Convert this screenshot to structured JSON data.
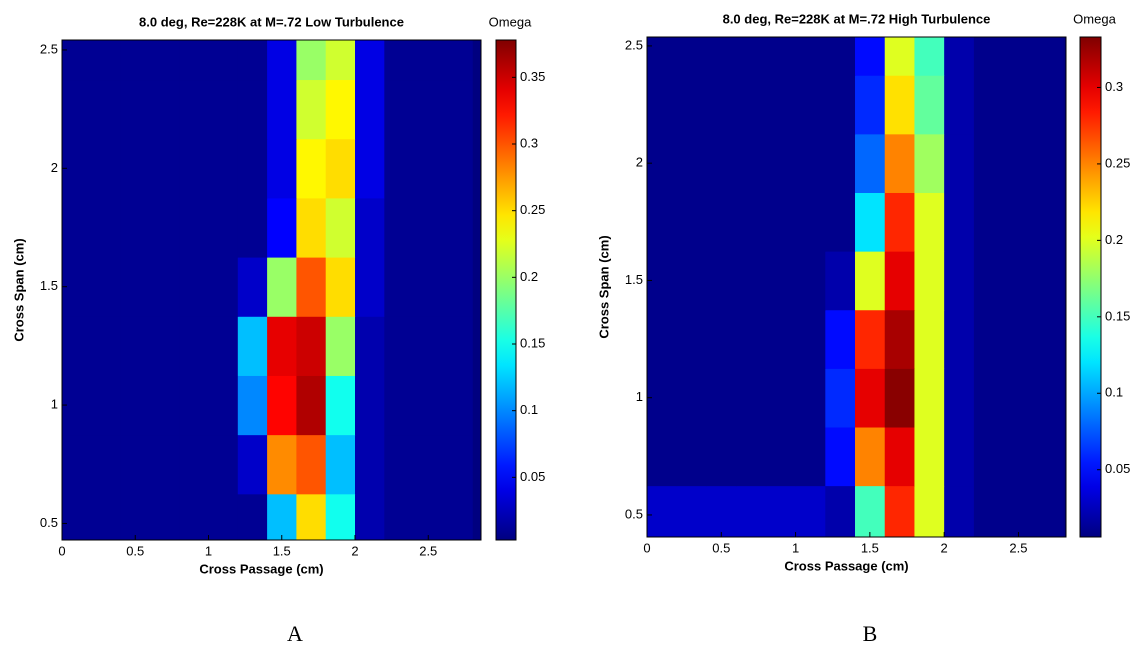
{
  "chart_data": [
    {
      "type": "heatmap",
      "title": "8.0 deg, Re=228K at M=.72 Low Turbulence",
      "colorbar_label": "Omega",
      "x_label": "Cross Passage (cm)",
      "y_label": "Cross Span (cm)",
      "panel_label": "A",
      "colormap": "jet",
      "x": [
        0.1,
        0.3,
        0.5,
        0.7,
        0.9,
        1.1,
        1.3,
        1.5,
        1.7,
        1.9,
        2.1,
        2.3,
        2.5,
        2.7
      ],
      "y": [
        0.5,
        0.75,
        1.0,
        1.25,
        1.5,
        1.75,
        2.0,
        2.25,
        2.5
      ],
      "z": [
        [
          0.01,
          0.01,
          0.01,
          0.01,
          0.01,
          0.01,
          0.01,
          0.12,
          0.25,
          0.15,
          0.02,
          0.01,
          0.01,
          0.01
        ],
        [
          0.01,
          0.01,
          0.01,
          0.01,
          0.01,
          0.01,
          0.03,
          0.28,
          0.3,
          0.12,
          0.02,
          0.01,
          0.01,
          0.01
        ],
        [
          0.01,
          0.01,
          0.01,
          0.01,
          0.01,
          0.01,
          0.1,
          0.33,
          0.36,
          0.15,
          0.02,
          0.01,
          0.01,
          0.01
        ],
        [
          0.01,
          0.01,
          0.01,
          0.01,
          0.01,
          0.01,
          0.12,
          0.34,
          0.35,
          0.2,
          0.02,
          0.01,
          0.01,
          0.01
        ],
        [
          0.01,
          0.01,
          0.01,
          0.01,
          0.01,
          0.01,
          0.03,
          0.2,
          0.3,
          0.25,
          0.03,
          0.01,
          0.01,
          0.01
        ],
        [
          0.01,
          0.01,
          0.01,
          0.01,
          0.01,
          0.01,
          0.01,
          0.05,
          0.25,
          0.22,
          0.03,
          0.01,
          0.01,
          0.01
        ],
        [
          0.01,
          0.01,
          0.01,
          0.01,
          0.01,
          0.01,
          0.01,
          0.04,
          0.24,
          0.25,
          0.04,
          0.01,
          0.01,
          0.01
        ],
        [
          0.01,
          0.01,
          0.01,
          0.01,
          0.01,
          0.01,
          0.01,
          0.04,
          0.22,
          0.24,
          0.04,
          0.01,
          0.01,
          0.01
        ],
        [
          0.01,
          0.01,
          0.01,
          0.01,
          0.01,
          0.01,
          0.01,
          0.04,
          0.2,
          0.22,
          0.04,
          0.01,
          0.01,
          0.01
        ]
      ],
      "xlim": [
        0,
        2.86
      ],
      "ylim": [
        0.43,
        2.542
      ],
      "xticks": [
        0,
        0.5,
        1,
        1.5,
        2,
        2.5
      ],
      "yticks": [
        0.5,
        1,
        1.5,
        2,
        2.5
      ],
      "clim": [
        0.003,
        0.378
      ],
      "cticks": [
        0.05,
        0.1,
        0.15,
        0.2,
        0.25,
        0.3,
        0.35
      ]
    },
    {
      "type": "heatmap",
      "title": "8.0 deg, Re=228K at M=.72 High Turbulence",
      "colorbar_label": "Omega",
      "x_label": "Cross Passage (cm)",
      "y_label": "Cross Span (cm)",
      "panel_label": "B",
      "colormap": "jet",
      "x": [
        0.1,
        0.3,
        0.5,
        0.7,
        0.9,
        1.1,
        1.3,
        1.5,
        1.7,
        1.9,
        2.1,
        2.3,
        2.5,
        2.7
      ],
      "y": [
        0.5,
        0.75,
        1.0,
        1.25,
        1.5,
        1.75,
        2.0,
        2.25,
        2.5
      ],
      "z": [
        [
          0.03,
          0.03,
          0.03,
          0.03,
          0.03,
          0.03,
          0.02,
          0.15,
          0.28,
          0.2,
          0.02,
          0.01,
          0.01,
          0.01
        ],
        [
          0.01,
          0.01,
          0.01,
          0.01,
          0.01,
          0.01,
          0.05,
          0.25,
          0.3,
          0.2,
          0.02,
          0.01,
          0.01,
          0.01
        ],
        [
          0.01,
          0.01,
          0.01,
          0.01,
          0.01,
          0.01,
          0.06,
          0.3,
          0.33,
          0.2,
          0.02,
          0.01,
          0.01,
          0.01
        ],
        [
          0.01,
          0.01,
          0.01,
          0.01,
          0.01,
          0.01,
          0.05,
          0.28,
          0.32,
          0.2,
          0.02,
          0.01,
          0.01,
          0.01
        ],
        [
          0.01,
          0.01,
          0.01,
          0.01,
          0.01,
          0.01,
          0.02,
          0.2,
          0.3,
          0.2,
          0.02,
          0.01,
          0.01,
          0.01
        ],
        [
          0.01,
          0.01,
          0.01,
          0.01,
          0.01,
          0.01,
          0.01,
          0.12,
          0.28,
          0.2,
          0.02,
          0.01,
          0.01,
          0.01
        ],
        [
          0.01,
          0.01,
          0.01,
          0.01,
          0.01,
          0.01,
          0.01,
          0.08,
          0.25,
          0.18,
          0.02,
          0.01,
          0.01,
          0.01
        ],
        [
          0.01,
          0.01,
          0.01,
          0.01,
          0.01,
          0.01,
          0.01,
          0.06,
          0.22,
          0.16,
          0.02,
          0.01,
          0.01,
          0.01
        ],
        [
          0.01,
          0.01,
          0.01,
          0.01,
          0.01,
          0.01,
          0.01,
          0.05,
          0.2,
          0.15,
          0.02,
          0.01,
          0.01,
          0.01
        ]
      ],
      "xlim": [
        0,
        2.82
      ],
      "ylim": [
        0.406,
        2.538
      ],
      "xticks": [
        0,
        0.5,
        1,
        1.5,
        2,
        2.5
      ],
      "yticks": [
        0.5,
        1,
        1.5,
        2,
        2.5
      ],
      "clim": [
        0.006,
        0.333
      ],
      "cticks": [
        0.05,
        0.1,
        0.15,
        0.2,
        0.25,
        0.3
      ]
    }
  ]
}
